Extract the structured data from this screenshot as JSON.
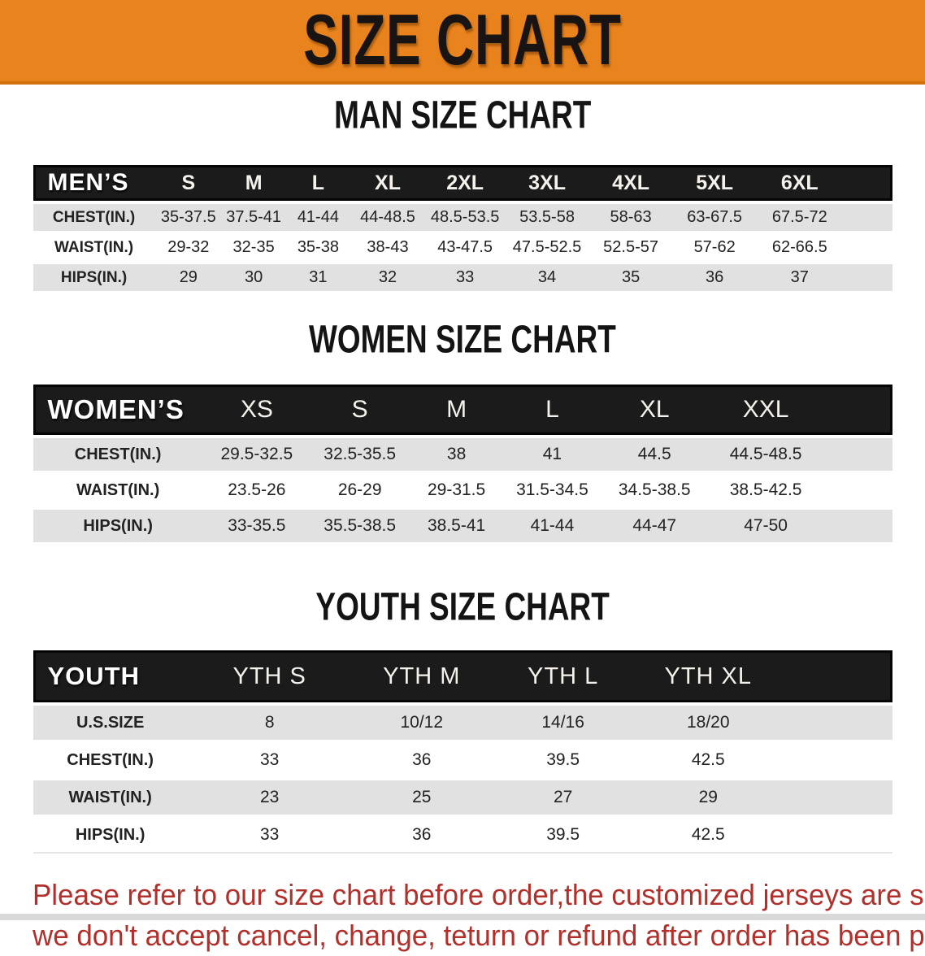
{
  "banner": {
    "title": "SIZE CHART",
    "bg_color": "#E8831E",
    "text_color": "#171413"
  },
  "colors": {
    "header_bar": "#1b1b1b",
    "row_gray": "#E1E1E1",
    "footer_red": "#B0302C"
  },
  "sections": [
    {
      "heading": "MAN SIZE CHART",
      "table": {
        "header_label": "MEN’S",
        "columns": [
          "S",
          "M",
          "L",
          "XL",
          "2XL",
          "3XL",
          "4XL",
          "5XL",
          "6XL"
        ],
        "rows": [
          {
            "label": "CHEST(IN.)",
            "values": [
              "35-37.5",
              "37.5-41",
              "41-44",
              "44-48.5",
              "48.5-53.5",
              "53.5-58",
              "58-63",
              "63-67.5",
              "67.5-72"
            ]
          },
          {
            "label": "WAIST(IN.)",
            "values": [
              "29-32",
              "32-35",
              "35-38",
              "38-43",
              "43-47.5",
              "47.5-52.5",
              "52.5-57",
              "57-62",
              "62-66.5"
            ]
          },
          {
            "label": "HIPS(IN.)",
            "values": [
              "29",
              "30",
              "31",
              "32",
              "33",
              "34",
              "35",
              "36",
              "37"
            ]
          }
        ]
      }
    },
    {
      "heading": "WOMEN SIZE CHART",
      "table": {
        "header_label": "WOMEN’S",
        "columns": [
          "XS",
          "S",
          "M",
          "L",
          "XL",
          "XXL"
        ],
        "rows": [
          {
            "label": "CHEST(IN.)",
            "values": [
              "29.5-32.5",
              "32.5-35.5",
              "38",
              "41",
              "44.5",
              "44.5-48.5"
            ]
          },
          {
            "label": "WAIST(IN.)",
            "values": [
              "23.5-26",
              "26-29",
              "29-31.5",
              "31.5-34.5",
              "34.5-38.5",
              "38.5-42.5"
            ]
          },
          {
            "label": "HIPS(IN.)",
            "values": [
              "33-35.5",
              "35.5-38.5",
              "38.5-41",
              "41-44",
              "44-47",
              "47-50"
            ]
          }
        ]
      }
    },
    {
      "heading": "YOUTH SIZE CHART",
      "table": {
        "header_label": "YOUTH",
        "columns": [
          "YTH S",
          "YTH M",
          "YTH L",
          "YTH XL"
        ],
        "rows": [
          {
            "label": "U.S.SIZE",
            "values": [
              "8",
              "10/12",
              "14/16",
              "18/20"
            ]
          },
          {
            "label": "CHEST(IN.)",
            "values": [
              "33",
              "36",
              "39.5",
              "42.5"
            ]
          },
          {
            "label": "WAIST(IN.)",
            "values": [
              "23",
              "25",
              "27",
              "29"
            ]
          },
          {
            "label": "HIPS(IN.)",
            "values": [
              "33",
              "36",
              "39.5",
              "42.5"
            ]
          }
        ]
      }
    }
  ],
  "footer": {
    "line1": "Please refer to our size chart before order,the customized jerseys are special products,",
    "line2": "we don't accept cancel, change, teturn or refund after order has been placed!"
  }
}
